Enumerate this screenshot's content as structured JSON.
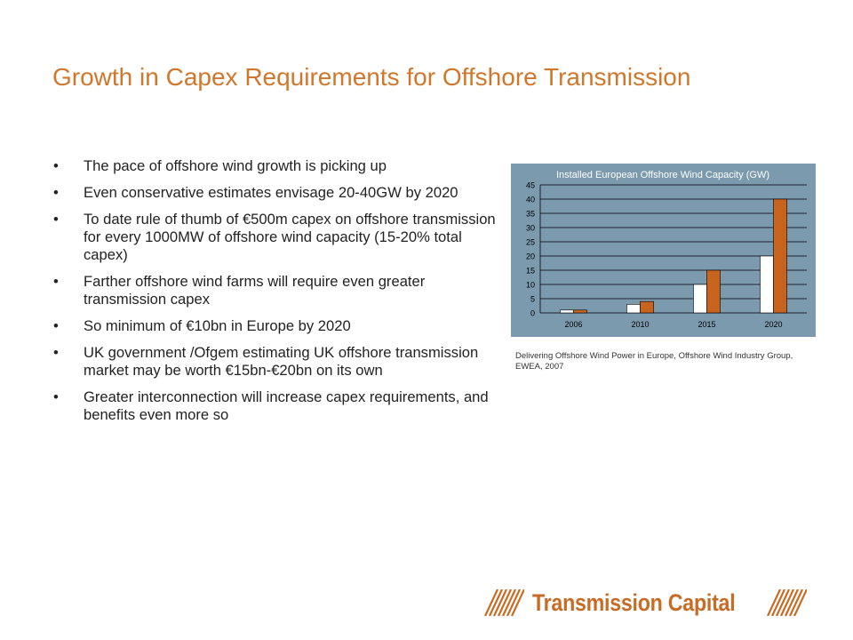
{
  "slide": {
    "title": "Growth in Capex Requirements for Offshore Transmission"
  },
  "bullets": [
    "The pace of offshore wind growth is picking up",
    "Even conservative estimates envisage 20-40GW by 2020",
    "To date rule of thumb of €500m capex on offshore transmission for every 1000MW of offshore wind capacity (15-20% total capex)",
    "Farther offshore wind farms will require even greater transmission capex",
    "So minimum of €10bn in Europe by 2020",
    "UK government /Ofgem estimating UK offshore transmission market may be worth €15bn-€20bn on its own",
    "Greater interconnection will increase capex requirements, and benefits even more so"
  ],
  "bullet_glyph": "•",
  "chart_data": {
    "type": "bar",
    "title": "Installed European Offshore Wind Capacity (GW)",
    "categories": [
      "2006",
      "2010",
      "2015",
      "2020"
    ],
    "series": [
      {
        "values": [
          1,
          3,
          10,
          20
        ],
        "color": "#ffffff"
      },
      {
        "values": [
          1,
          4,
          15,
          40
        ],
        "color": "#c8641e"
      }
    ],
    "ylim": [
      0,
      45
    ],
    "yticks": [
      0,
      5,
      10,
      15,
      20,
      25,
      30,
      35,
      40,
      45
    ],
    "xlabel": "",
    "ylabel": "",
    "grid": true,
    "background": "#7c9aae"
  },
  "chart_caption": "Delivering Offshore Wind Power in Europe, Offshore Wind Industry Group, EWEA, 2007",
  "logo": {
    "text": "Transmission Capital",
    "color": "#c86b25"
  },
  "colors": {
    "title": "#d0772b",
    "text": "#222222"
  }
}
